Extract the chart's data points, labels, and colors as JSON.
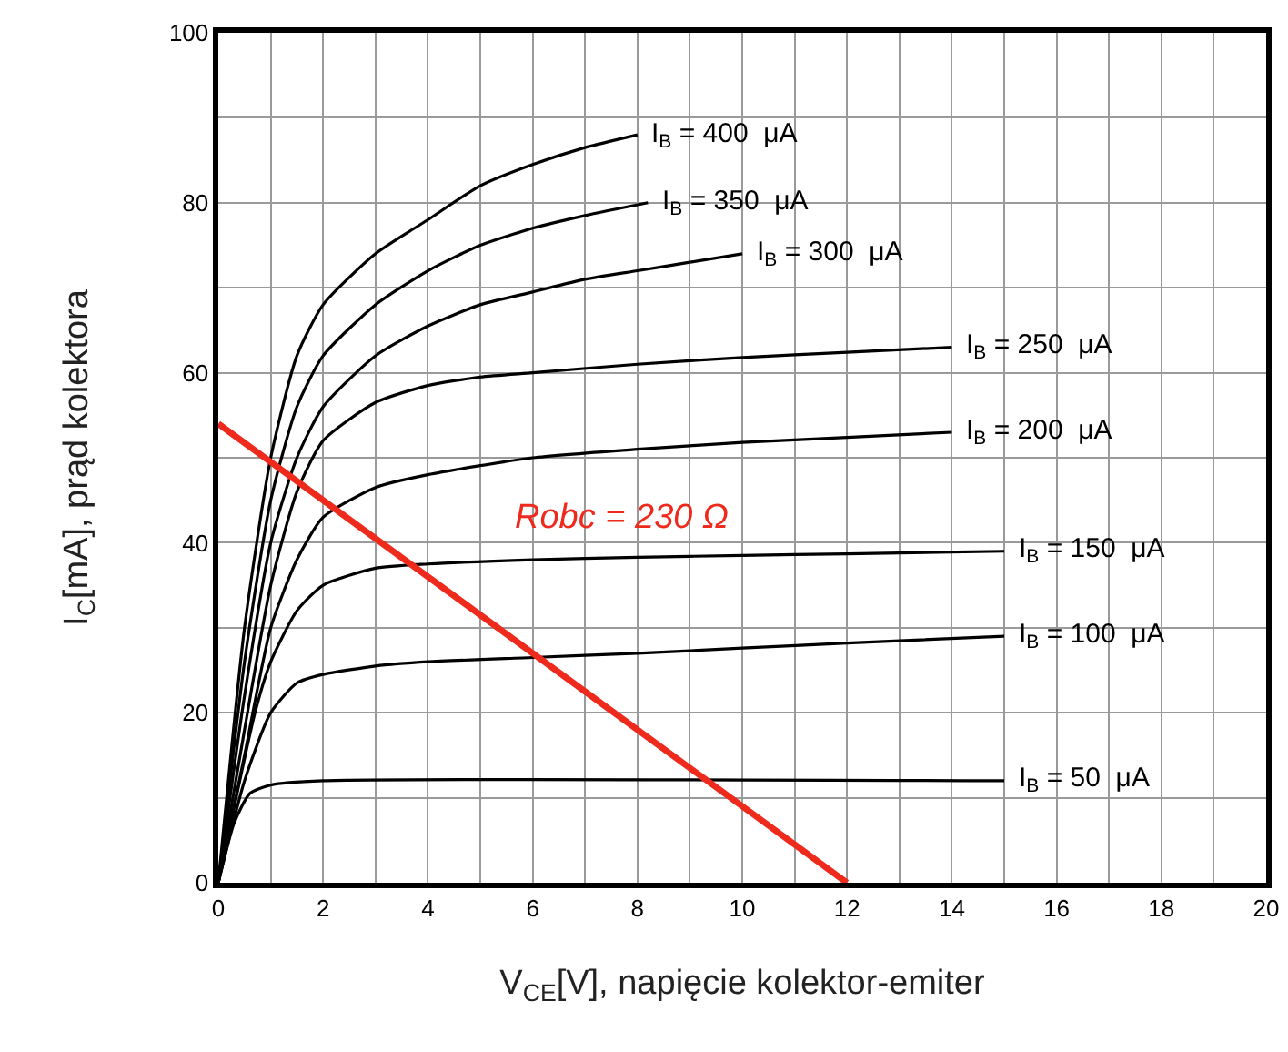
{
  "chart_data": {
    "type": "line",
    "xlabel": "V$_{CE}$[V], napięcie kolektor-emiter",
    "ylabel": "I$_{C}$[mA], prąd kolektora",
    "xlim": [
      0,
      20
    ],
    "ylim": [
      0,
      100
    ],
    "xticks": [
      0,
      2,
      4,
      6,
      8,
      10,
      12,
      14,
      16,
      18,
      20
    ],
    "yticks": [
      0,
      20,
      40,
      60,
      80,
      100
    ],
    "grid": true,
    "legend": false,
    "marker": "none",
    "line_style": "solid",
    "annotations": [
      "Robc = 230 Ω"
    ],
    "series": [
      {
        "name": "I$_{B}$ = 400  μA",
        "color": "#000000",
        "x": [
          0,
          0.5,
          1,
          1.5,
          2,
          3,
          4,
          5,
          6,
          7,
          8
        ],
        "values": [
          0,
          30,
          50,
          62,
          68,
          74,
          78,
          82,
          84.5,
          86.5,
          88
        ]
      },
      {
        "name": "I$_{B}$ = 350  μA",
        "color": "#000000",
        "x": [
          0,
          0.5,
          1,
          1.5,
          2,
          3,
          4,
          5,
          6,
          7,
          8.2
        ],
        "values": [
          0,
          26,
          45,
          56,
          62,
          68,
          72,
          75,
          77,
          78.5,
          80
        ]
      },
      {
        "name": "I$_{B}$ = 300  μA",
        "color": "#000000",
        "x": [
          0,
          0.5,
          1,
          1.5,
          2,
          3,
          4,
          5,
          6,
          7,
          8,
          9,
          10
        ],
        "values": [
          0,
          22,
          40,
          50,
          56,
          62,
          65.5,
          68,
          69.5,
          71,
          72,
          73,
          74
        ]
      },
      {
        "name": "I$_{B}$ = 250  μA",
        "color": "#000000",
        "x": [
          0,
          0.5,
          1,
          1.5,
          2,
          3,
          4,
          5,
          6,
          8,
          10,
          12,
          14
        ],
        "values": [
          0,
          18,
          35,
          46,
          52,
          56.5,
          58.5,
          59.5,
          60,
          61,
          61.8,
          62.4,
          63
        ]
      },
      {
        "name": "I$_{B}$ = 200  μA",
        "color": "#000000",
        "x": [
          0,
          0.5,
          1,
          1.5,
          2,
          3,
          4,
          6,
          8,
          10,
          12,
          14
        ],
        "values": [
          0,
          15,
          30,
          38,
          43,
          46.5,
          48,
          50,
          51,
          51.8,
          52.4,
          53
        ]
      },
      {
        "name": "I$_{B}$ = 150  μA",
        "color": "#000000",
        "x": [
          0,
          0.7,
          1,
          1.5,
          2,
          3,
          4,
          6,
          8,
          10,
          12,
          15
        ],
        "values": [
          0,
          20,
          26,
          32,
          35,
          37,
          37.5,
          38,
          38.3,
          38.5,
          38.7,
          39
        ]
      },
      {
        "name": "I$_{B}$ = 100  μA",
        "color": "#000000",
        "x": [
          0,
          0.5,
          1,
          1.5,
          2,
          3,
          4,
          6,
          8,
          10,
          12,
          15
        ],
        "values": [
          0,
          12,
          20,
          23.5,
          24.5,
          25.5,
          26,
          26.5,
          27,
          27.6,
          28.2,
          29
        ]
      },
      {
        "name": "I$_{B}$ = 50  μA",
        "color": "#000000",
        "x": [
          0,
          0.3,
          0.6,
          1,
          2,
          15
        ],
        "values": [
          0,
          7,
          10.5,
          11.5,
          12,
          12
        ]
      },
      {
        "color": "#ee2a1c",
        "x": [
          0,
          12
        ],
        "values": [
          54,
          0
        ]
      }
    ]
  }
}
